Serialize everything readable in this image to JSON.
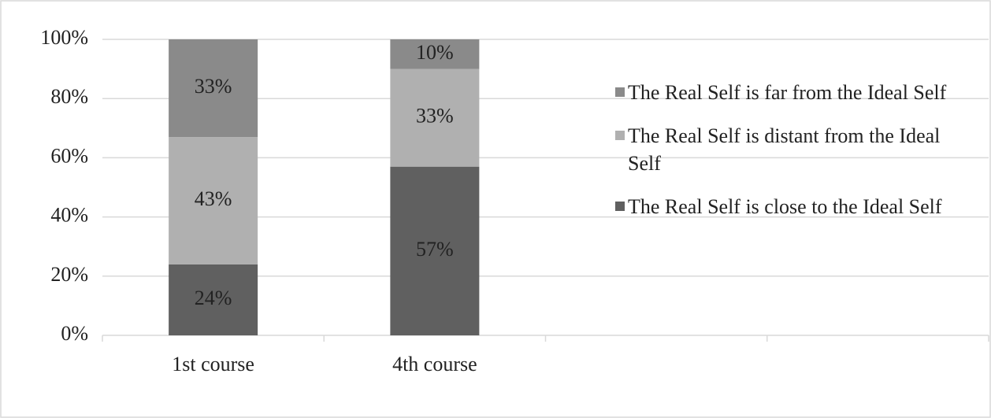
{
  "chart_data": {
    "type": "stacked_bar",
    "categories": [
      "1st course",
      "4th course",
      null,
      null
    ],
    "series": [
      {
        "name": "The Real Self is close to the Ideal Self",
        "color": "#606060",
        "values": [
          24,
          57,
          null,
          null
        ],
        "value_labels": [
          "24%",
          "57%",
          null,
          null
        ]
      },
      {
        "name": "The Real Self is distant from the Ideal Self",
        "color": "#b0b0b0",
        "values": [
          43,
          33,
          null,
          null
        ],
        "value_labels": [
          "43%",
          "33%",
          null,
          null
        ]
      },
      {
        "name": "The Real Self is far from the Ideal Self",
        "color": "#8a8a8a",
        "values": [
          33,
          10,
          null,
          null
        ],
        "value_labels": [
          "33%",
          "10%",
          null,
          null
        ]
      }
    ],
    "ylim": [
      0,
      100
    ],
    "yticks": [
      {
        "value": 0,
        "label": "0%"
      },
      {
        "value": 20,
        "label": "20%"
      },
      {
        "value": 40,
        "label": "40%"
      },
      {
        "value": 60,
        "label": "60%"
      },
      {
        "value": 80,
        "label": "80%"
      },
      {
        "value": 100,
        "label": "100%"
      }
    ],
    "grid": true,
    "legend": "right"
  }
}
